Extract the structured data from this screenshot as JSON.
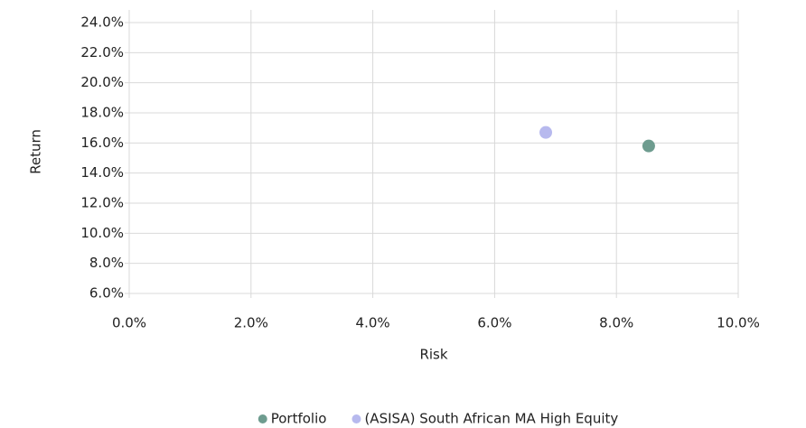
{
  "chart_data": {
    "type": "scatter",
    "x_label": "Risk",
    "y_label": "Return",
    "xlim": [
      0,
      10
    ],
    "ylim": [
      6,
      24
    ],
    "xticks": [
      {
        "value": 0,
        "label": "0.0%"
      },
      {
        "value": 2,
        "label": "2.0%"
      },
      {
        "value": 4,
        "label": "4.0%"
      },
      {
        "value": 6,
        "label": "6.0%"
      },
      {
        "value": 8,
        "label": "8.0%"
      },
      {
        "value": 10,
        "label": "10.0%"
      }
    ],
    "yticks": [
      {
        "value": 6,
        "label": "6.0%"
      },
      {
        "value": 8,
        "label": "8.0%"
      },
      {
        "value": 10,
        "label": "10.0%"
      },
      {
        "value": 12,
        "label": "12.0%"
      },
      {
        "value": 14,
        "label": "14.0%"
      },
      {
        "value": 16,
        "label": "16.0%"
      },
      {
        "value": 18,
        "label": "18.0%"
      },
      {
        "value": 20,
        "label": "20.0%"
      },
      {
        "value": 22,
        "label": "22.0%"
      },
      {
        "value": 24,
        "label": "24.0%"
      }
    ],
    "grid": true,
    "legend": "bottom",
    "series": [
      {
        "name": "Portfolio",
        "color": "#6e9c8f",
        "x": [
          8.53
        ],
        "values": [
          15.8
        ]
      },
      {
        "name": "(ASISA) South African MA High Equity",
        "color": "#b7b9ee",
        "x": [
          6.84
        ],
        "values": [
          16.7
        ]
      }
    ]
  }
}
